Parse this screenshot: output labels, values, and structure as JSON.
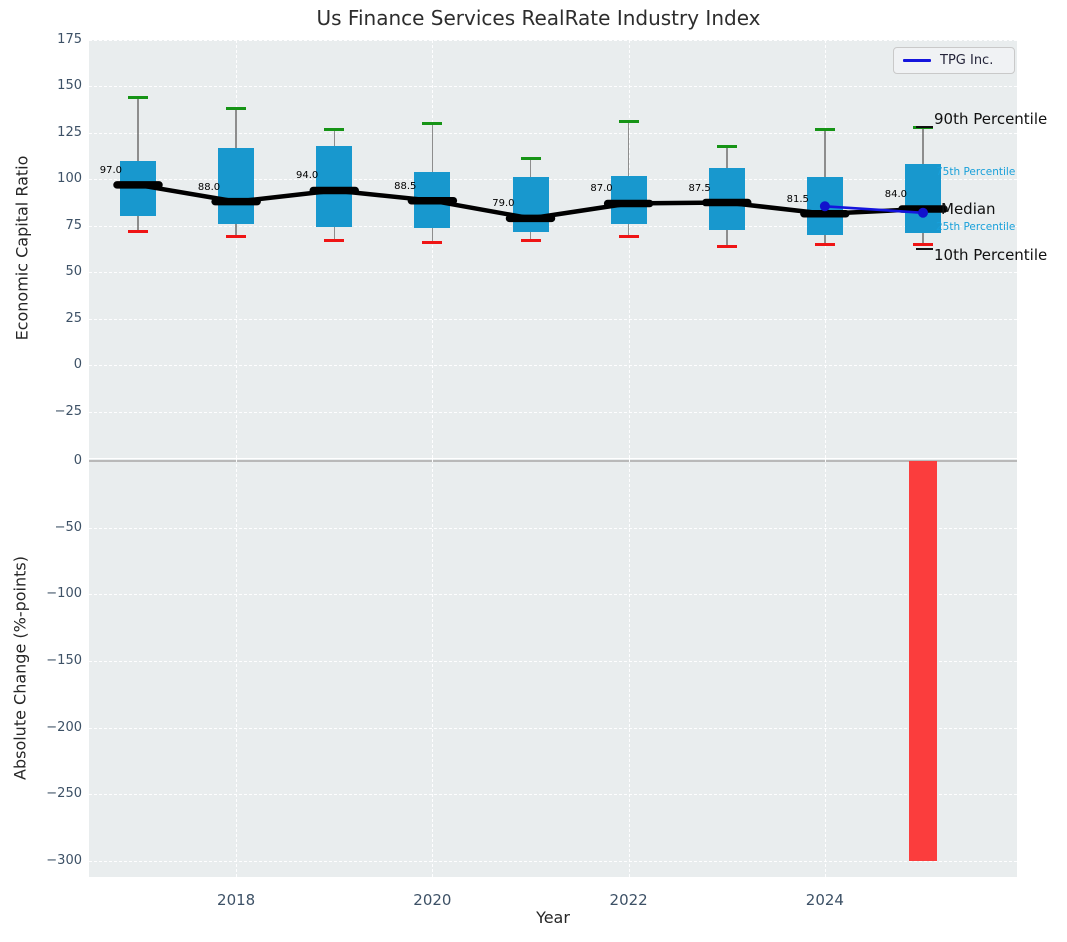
{
  "title": "Us Finance Services RealRate Industry Index",
  "legend": {
    "label": "TPG Inc."
  },
  "axes": {
    "top": {
      "ylabel": "Economic Capital Ratio",
      "yticks": [
        {
          "label": "175",
          "v": 175
        },
        {
          "label": "150",
          "v": 150
        },
        {
          "label": "125",
          "v": 125
        },
        {
          "label": "100",
          "v": 100
        },
        {
          "label": "75",
          "v": 75
        },
        {
          "label": "50",
          "v": 50
        },
        {
          "label": "25",
          "v": 25
        },
        {
          "label": "0",
          "v": 0
        },
        {
          "label": "−25",
          "v": -25
        }
      ]
    },
    "bottom": {
      "ylabel": "Absolute Change (%-points)",
      "yticks": [
        {
          "label": "0",
          "v": 0
        },
        {
          "label": "−50",
          "v": -50
        },
        {
          "label": "−100",
          "v": -100
        },
        {
          "label": "−150",
          "v": -150
        },
        {
          "label": "−200",
          "v": -200
        },
        {
          "label": "−250",
          "v": -250
        },
        {
          "label": "−300",
          "v": -300
        }
      ]
    },
    "xlabel": "Year",
    "xticks": [
      {
        "label": "2018",
        "year": 2018
      },
      {
        "label": "2020",
        "year": 2020
      },
      {
        "label": "2022",
        "year": 2022
      },
      {
        "label": "2024",
        "year": 2024
      }
    ]
  },
  "right_labels": [
    {
      "text": "90th Percentile",
      "emphasis": "major"
    },
    {
      "text": "75th Percentile",
      "emphasis": "minor"
    },
    {
      "text": "Median",
      "emphasis": "major"
    },
    {
      "text": "25th Percentile",
      "emphasis": "minor"
    },
    {
      "text": "10th Percentile",
      "emphasis": "major"
    }
  ],
  "chart_data": {
    "type": "box",
    "title": "Us Finance Services RealRate Industry Index",
    "xlabel": "Year",
    "top_ylabel": "Economic Capital Ratio",
    "bottom_ylabel": "Absolute Change (%-points)",
    "top_ylim": [
      -50,
      175
    ],
    "bottom_ylim": [
      -313,
      2
    ],
    "years": [
      2017,
      2018,
      2019,
      2020,
      2021,
      2022,
      2023,
      2024,
      2025
    ],
    "boxes": [
      {
        "year": 2017,
        "p10": 72,
        "q1": 80,
        "median": 97,
        "q3": 110,
        "p90": 144,
        "label": "97.0"
      },
      {
        "year": 2018,
        "p10": 69,
        "q1": 76,
        "median": 88,
        "q3": 117,
        "p90": 138,
        "label": "88.0"
      },
      {
        "year": 2019,
        "p10": 67,
        "q1": 74.5,
        "median": 94,
        "q3": 118,
        "p90": 127,
        "label": "94.0"
      },
      {
        "year": 2020,
        "p10": 66,
        "q1": 74,
        "median": 88.5,
        "q3": 104,
        "p90": 130,
        "label": "88.5"
      },
      {
        "year": 2021,
        "p10": 67,
        "q1": 71.5,
        "median": 79,
        "q3": 101,
        "p90": 111,
        "label": "79.0"
      },
      {
        "year": 2022,
        "p10": 69,
        "q1": 76,
        "median": 87,
        "q3": 102,
        "p90": 131,
        "label": "87.0"
      },
      {
        "year": 2023,
        "p10": 64,
        "q1": 72.5,
        "median": 87.5,
        "q3": 106,
        "p90": 117.5,
        "label": "87.5"
      },
      {
        "year": 2024,
        "p10": 65,
        "q1": 70,
        "median": 81.5,
        "q3": 101,
        "p90": 127,
        "label": "81.5"
      },
      {
        "year": 2025,
        "p10": 65,
        "q1": 71,
        "median": 84,
        "q3": 108,
        "p90": 128,
        "label": "84.0"
      }
    ],
    "series": [
      {
        "name": "TPG Inc.",
        "x": [
          2024,
          2025
        ],
        "y": [
          85.5,
          82
        ]
      }
    ],
    "bottom_bars": [
      {
        "year": 2025,
        "value": -300
      }
    ],
    "legend_position": "upper right",
    "grid": true
  },
  "colors": {
    "box_fill": "#1898ce",
    "whisker": "#8d8d8d",
    "cap_high": "#169416",
    "cap_low": "#ef1515",
    "median_line": "#000000",
    "tpg_line": "#1515dd",
    "tpg_dot": "#1111cc",
    "neg_bar": "#fb3d3d",
    "blue_label": "#18a0da",
    "panel_bg": "#e9edee"
  }
}
